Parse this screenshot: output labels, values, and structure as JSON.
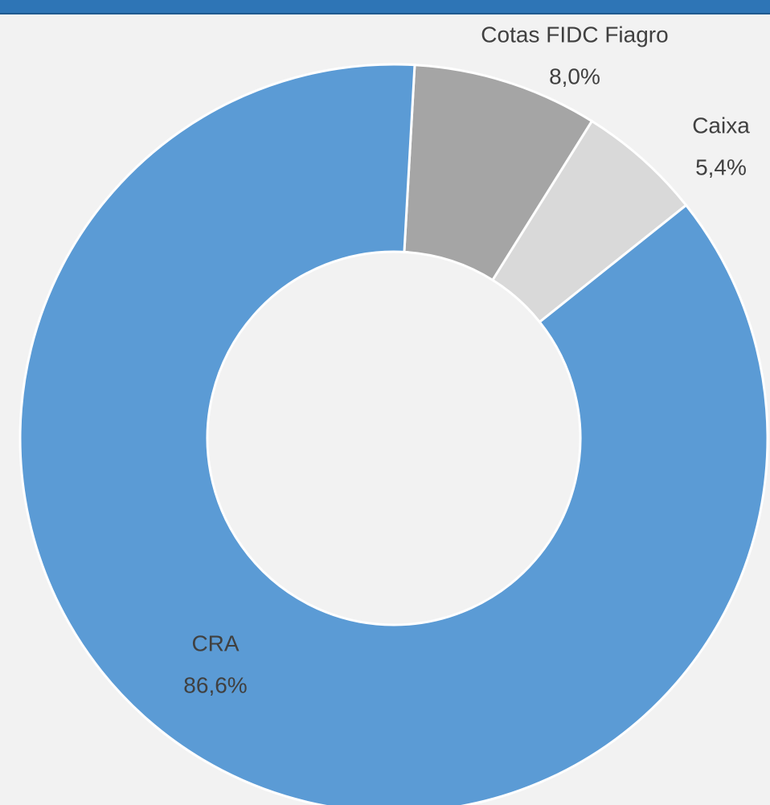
{
  "chart_data": {
    "type": "donut",
    "categories": [
      "Cotas FIDC Fiagro",
      "Caixa",
      "CRA"
    ],
    "values": [
      8.0,
      5.4,
      86.6
    ],
    "value_labels": [
      "8,0%",
      "5,4%",
      "86,6%"
    ],
    "colors": [
      "#a5a5a5",
      "#d9d9d9",
      "#5b9bd5"
    ]
  }
}
